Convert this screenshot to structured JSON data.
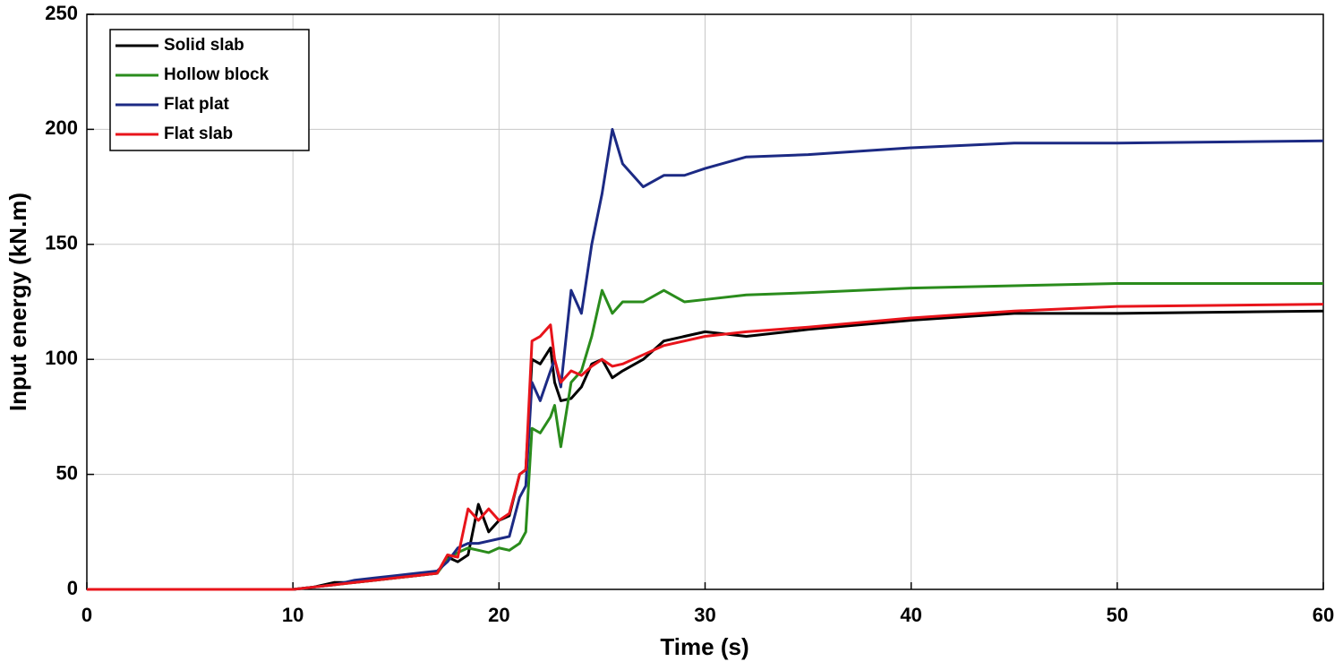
{
  "chart_data": {
    "type": "line",
    "xlabel": "Time (s)",
    "ylabel": "Input energy (kN.m)",
    "x": [
      0,
      10,
      11,
      12,
      13,
      14,
      15,
      16,
      17,
      17.5,
      18,
      18.5,
      19,
      19.5,
      20,
      20.5,
      21,
      21.3,
      21.6,
      22,
      22.5,
      22.7,
      23,
      23.5,
      24,
      24.5,
      25,
      25.5,
      26,
      27,
      28,
      29,
      30,
      32,
      35,
      40,
      45,
      50,
      60
    ],
    "series": [
      {
        "name": "Solid slab",
        "color": "#000000",
        "values": [
          0,
          0,
          1,
          3,
          3,
          4,
          5,
          6,
          7,
          14,
          12,
          15,
          37,
          25,
          30,
          32,
          50,
          52,
          100,
          98,
          105,
          90,
          82,
          83,
          88,
          98,
          100,
          92,
          95,
          100,
          108,
          110,
          112,
          110,
          113,
          117,
          120,
          120,
          121
        ]
      },
      {
        "name": "Hollow block",
        "color": "#2a8c1c",
        "values": [
          0,
          0,
          1,
          2,
          3,
          4,
          5,
          6,
          7,
          13,
          16,
          18,
          17,
          16,
          18,
          17,
          20,
          25,
          70,
          68,
          75,
          80,
          62,
          90,
          95,
          110,
          130,
          120,
          125,
          125,
          130,
          125,
          126,
          128,
          129,
          131,
          132,
          133,
          133
        ]
      },
      {
        "name": "Flat plat",
        "color": "#1c2a84",
        "values": [
          0,
          0,
          1,
          2,
          4,
          5,
          6,
          7,
          8,
          12,
          18,
          20,
          20,
          21,
          22,
          23,
          40,
          45,
          90,
          82,
          95,
          100,
          88,
          130,
          120,
          150,
          172,
          200,
          185,
          175,
          180,
          180,
          183,
          188,
          189,
          192,
          194,
          194,
          195
        ]
      },
      {
        "name": "Flat slab",
        "color": "#e8141b",
        "values": [
          0,
          0,
          1,
          2,
          3,
          4,
          5,
          6,
          7,
          15,
          14,
          35,
          30,
          35,
          30,
          33,
          50,
          52,
          108,
          110,
          115,
          100,
          90,
          95,
          93,
          97,
          100,
          97,
          98,
          102,
          106,
          108,
          110,
          112,
          114,
          118,
          121,
          123,
          124
        ]
      }
    ],
    "xlim": [
      0,
      60
    ],
    "xticks": [
      0,
      10,
      20,
      30,
      40,
      50,
      60
    ],
    "ylim": [
      0,
      250
    ],
    "yticks": [
      0,
      50,
      100,
      150,
      200,
      250
    ],
    "grid": true,
    "legend": "upper-left"
  }
}
